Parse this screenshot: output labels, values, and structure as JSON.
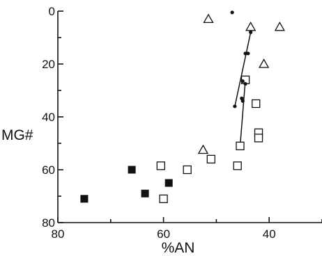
{
  "chart_data": {
    "type": "scatter",
    "title": "",
    "xlabel": "%AN",
    "ylabel": "MG#",
    "xlim": [
      80,
      30
    ],
    "ylim": [
      0,
      80
    ],
    "x_axis_reversed": true,
    "y_axis_inverted": true,
    "x_ticks": [
      80,
      60,
      40
    ],
    "x_minor_ticks": [
      70,
      50,
      30
    ],
    "y_ticks": [
      0,
      20,
      40,
      60,
      80
    ],
    "y_minor_ticks": [
      10,
      30,
      50,
      70
    ],
    "grid": false,
    "legend": "none",
    "series": [
      {
        "marker": "filled-square",
        "points": [
          {
            "x": 75,
            "y": 71
          },
          {
            "x": 66,
            "y": 60
          },
          {
            "x": 63.5,
            "y": 69
          },
          {
            "x": 59,
            "y": 65
          }
        ]
      },
      {
        "marker": "open-square",
        "points": [
          {
            "x": 60.5,
            "y": 58.5
          },
          {
            "x": 60,
            "y": 71
          },
          {
            "x": 55.5,
            "y": 60
          },
          {
            "x": 51,
            "y": 56
          },
          {
            "x": 46,
            "y": 58.5
          },
          {
            "x": 45.5,
            "y": 51
          },
          {
            "x": 44.5,
            "y": 26
          },
          {
            "x": 42.5,
            "y": 35
          },
          {
            "x": 42,
            "y": 46
          },
          {
            "x": 42,
            "y": 48
          }
        ]
      },
      {
        "marker": "open-triangle",
        "points": [
          {
            "x": 51.5,
            "y": 3
          },
          {
            "x": 43.5,
            "y": 6
          },
          {
            "x": 38,
            "y": 6
          },
          {
            "x": 41,
            "y": 20
          },
          {
            "x": 52.5,
            "y": 52.5
          }
        ]
      },
      {
        "marker": "small-dot",
        "points": [
          {
            "x": 47,
            "y": 0.5
          },
          {
            "x": 43.5,
            "y": 8
          },
          {
            "x": 44.5,
            "y": 16
          },
          {
            "x": 44,
            "y": 16
          },
          {
            "x": 45,
            "y": 26.5
          },
          {
            "x": 44.5,
            "y": 27.5
          },
          {
            "x": 45.2,
            "y": 33
          },
          {
            "x": 45,
            "y": 34
          },
          {
            "x": 46.5,
            "y": 36
          }
        ]
      }
    ],
    "trend_lines": [
      {
        "points": [
          {
            "x": 46.5,
            "y": 36
          },
          {
            "x": 43.5,
            "y": 8
          }
        ]
      },
      {
        "points": [
          {
            "x": 45.5,
            "y": 51
          },
          {
            "x": 44.5,
            "y": 26
          }
        ]
      }
    ]
  }
}
